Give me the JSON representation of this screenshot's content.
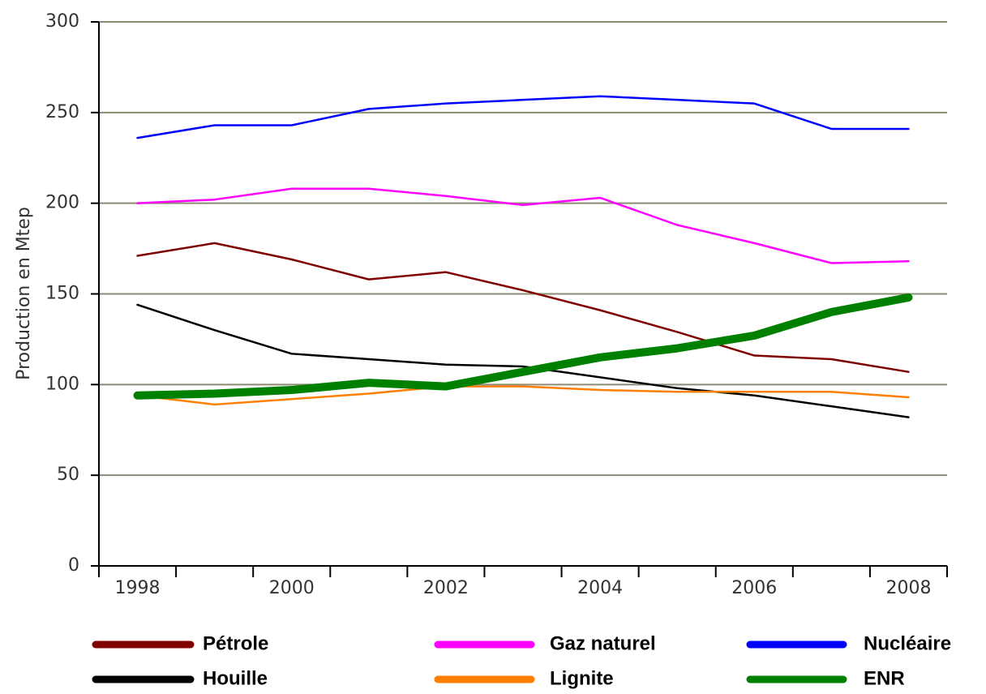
{
  "chart_data": {
    "type": "line",
    "ylabel": "Production en Mtep",
    "categories": [
      "1998",
      null,
      "2000",
      null,
      "2002",
      null,
      "2004",
      null,
      "2006",
      null,
      "2008"
    ],
    "ylim": [
      0,
      300
    ],
    "yticks": [
      0,
      50,
      100,
      150,
      200,
      250,
      300
    ],
    "grid": true,
    "legend": "bottom",
    "series": [
      {
        "name": "Pétrole",
        "color": "#800000",
        "values": [
          171,
          178,
          169,
          158,
          162,
          152,
          141,
          129,
          116,
          114,
          107
        ]
      },
      {
        "name": "Gaz naturel",
        "color": "#ff00ff",
        "values": [
          200,
          202,
          208,
          208,
          204,
          199,
          203,
          188,
          178,
          167,
          168
        ]
      },
      {
        "name": "Nucléaire",
        "color": "#0000ff",
        "values": [
          236,
          243,
          243,
          252,
          255,
          257,
          259,
          257,
          255,
          241,
          241
        ]
      },
      {
        "name": "Houille",
        "color": "#000000",
        "values": [
          144,
          130,
          117,
          114,
          111,
          110,
          104,
          98,
          94,
          88,
          82
        ]
      },
      {
        "name": "Lignite",
        "color": "#ff7f00",
        "values": [
          94,
          89,
          92,
          95,
          99,
          99,
          97,
          96,
          96,
          96,
          93
        ]
      },
      {
        "name": "ENR",
        "color": "#008000",
        "values": [
          94,
          95,
          97,
          101,
          99,
          107,
          115,
          120,
          127,
          140,
          148
        ]
      }
    ]
  }
}
